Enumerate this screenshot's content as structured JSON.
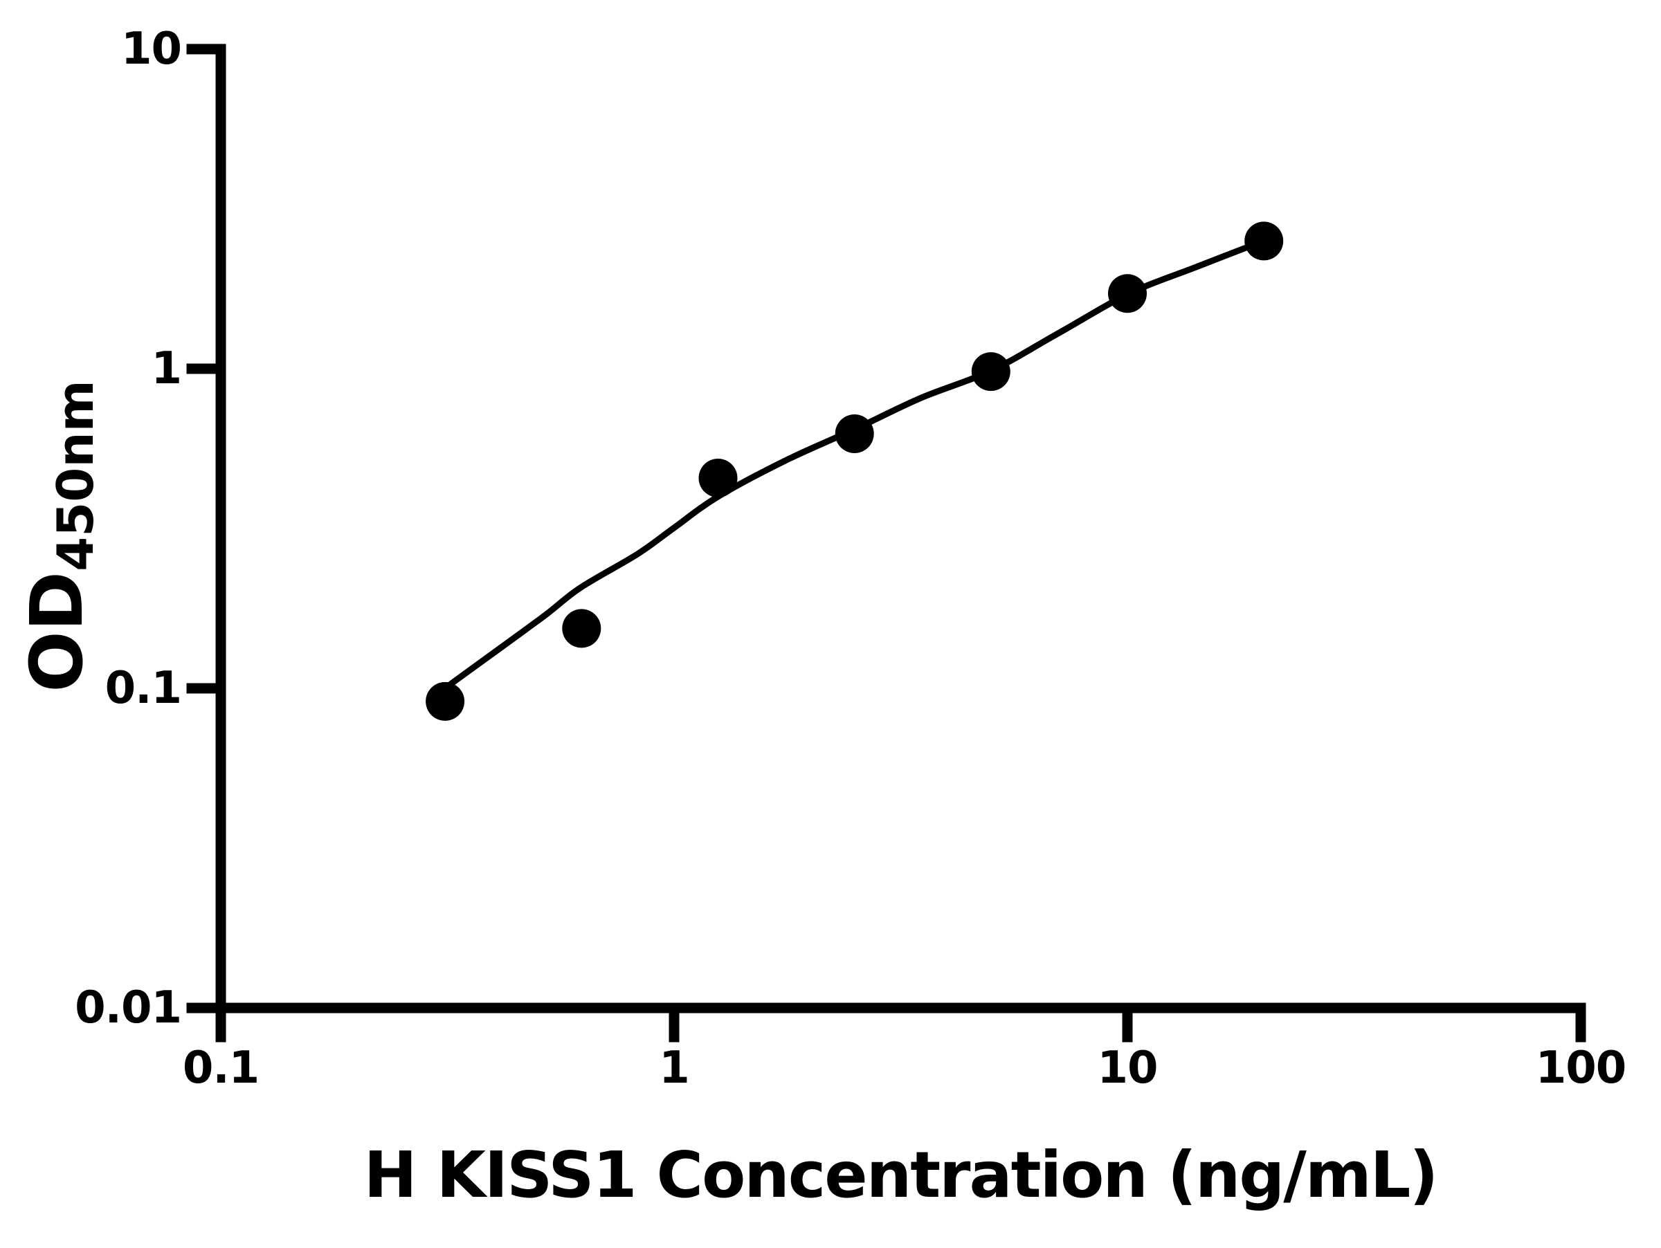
{
  "figure": {
    "background_color": "#ffffff",
    "foreground_color": "#000000"
  },
  "chart_data": {
    "type": "scatter",
    "title": "",
    "xlabel": "H KISS1 Concentration (ng/mL)",
    "ylabel_main": "OD",
    "ylabel_sub": "450nm",
    "xscale": "log",
    "yscale": "log",
    "xlim": [
      0.1,
      100
    ],
    "ylim": [
      0.01,
      10
    ],
    "grid": false,
    "legend": null,
    "x_ticks": {
      "values": [
        0.1,
        1,
        10,
        100
      ],
      "labels": [
        "0.1",
        "1",
        "10",
        "100"
      ]
    },
    "y_ticks": {
      "values": [
        0.01,
        0.1,
        1,
        10
      ],
      "labels": [
        "0.01",
        "0.1",
        "1",
        "10"
      ]
    },
    "series": [
      {
        "name": "standard-points",
        "kind": "scatter",
        "marker": "circle",
        "color": "#000000",
        "x": [
          0.3125,
          0.625,
          1.25,
          2.5,
          5,
          10,
          20
        ],
        "y": [
          0.091,
          0.154,
          0.455,
          0.626,
          0.98,
          1.72,
          2.51
        ]
      },
      {
        "name": "fit-curve",
        "kind": "line",
        "color": "#000000",
        "points": [
          [
            0.313,
            0.1
          ],
          [
            0.336,
            0.108
          ],
          [
            0.51,
            0.166
          ],
          [
            0.62,
            0.206
          ],
          [
            0.83,
            0.263
          ],
          [
            1.0,
            0.318
          ],
          [
            1.25,
            0.398
          ],
          [
            1.77,
            0.518
          ],
          [
            2.51,
            0.648
          ],
          [
            3.51,
            0.811
          ],
          [
            5.0,
            0.985
          ],
          [
            7.1,
            1.3
          ],
          [
            10.1,
            1.72
          ],
          [
            14.3,
            2.09
          ],
          [
            20.1,
            2.52
          ]
        ]
      }
    ]
  }
}
